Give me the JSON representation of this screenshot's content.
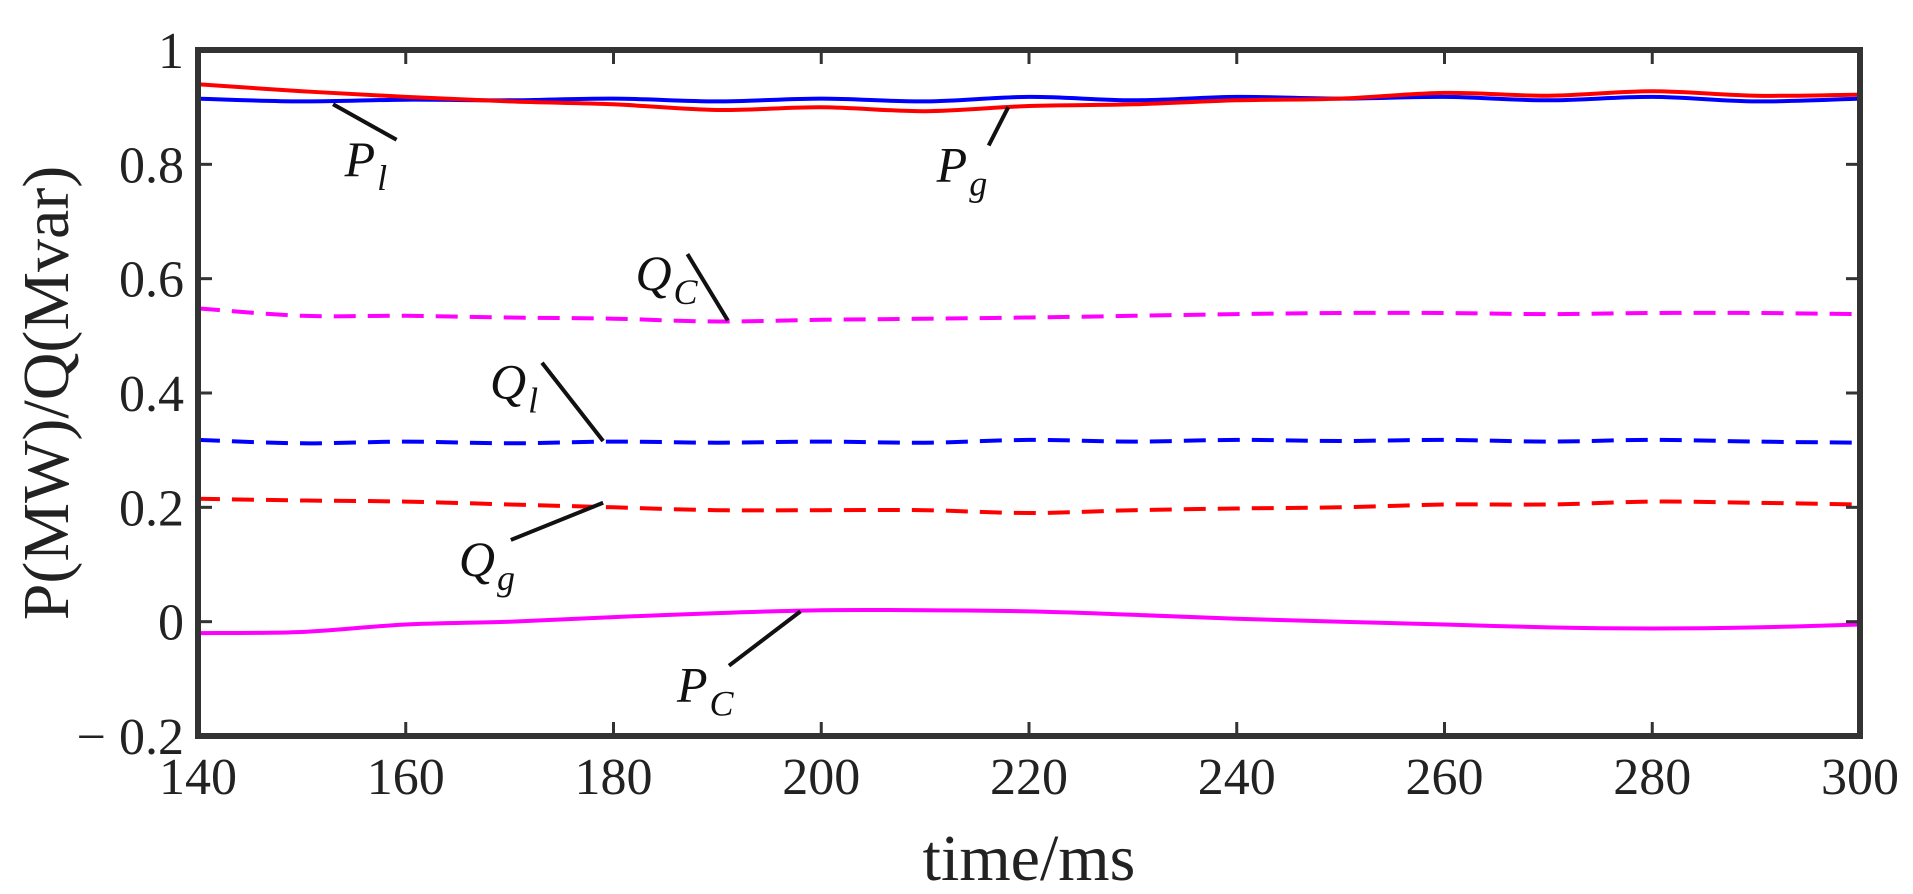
{
  "chart_data": {
    "type": "line",
    "xlabel": "time/ms",
    "ylabel": "P(MW)/Q(Mvar)",
    "xlim": [
      140,
      300
    ],
    "ylim": [
      -0.2,
      1
    ],
    "xticks": [
      140,
      160,
      180,
      200,
      220,
      240,
      260,
      280,
      300
    ],
    "xtick_labels": [
      "140",
      "160",
      "180",
      "200",
      "220",
      "240",
      "260",
      "280",
      "300"
    ],
    "yticks": [
      -0.2,
      0,
      0.2,
      0.4,
      0.6,
      0.8,
      1
    ],
    "ytick_labels": [
      "− 0.2",
      "0",
      "0.2",
      "0.4",
      "0.6",
      "0.8",
      "1"
    ],
    "grid": false,
    "series": [
      {
        "name": "P_l",
        "color": "#0000ff",
        "dash": "solid",
        "x": [
          140,
          150,
          160,
          170,
          180,
          190,
          200,
          210,
          220,
          230,
          240,
          250,
          260,
          270,
          280,
          290,
          300
        ],
        "y": [
          0.915,
          0.91,
          0.913,
          0.912,
          0.915,
          0.91,
          0.915,
          0.91,
          0.918,
          0.912,
          0.918,
          0.915,
          0.918,
          0.912,
          0.918,
          0.91,
          0.915
        ]
      },
      {
        "name": "P_g",
        "color": "#ff0000",
        "dash": "solid",
        "x": [
          140,
          150,
          160,
          170,
          180,
          190,
          200,
          210,
          220,
          230,
          240,
          250,
          260,
          270,
          280,
          290,
          300
        ],
        "y": [
          0.94,
          0.928,
          0.918,
          0.91,
          0.905,
          0.895,
          0.9,
          0.893,
          0.902,
          0.905,
          0.912,
          0.915,
          0.925,
          0.92,
          0.928,
          0.92,
          0.922
        ]
      },
      {
        "name": "Q_C",
        "color": "#ff00ff",
        "dash": "dashed",
        "x": [
          140,
          150,
          160,
          170,
          180,
          190,
          200,
          210,
          220,
          230,
          240,
          250,
          260,
          270,
          280,
          290,
          300
        ],
        "y": [
          0.548,
          0.535,
          0.535,
          0.532,
          0.53,
          0.525,
          0.528,
          0.53,
          0.532,
          0.535,
          0.538,
          0.54,
          0.54,
          0.538,
          0.54,
          0.54,
          0.538
        ]
      },
      {
        "name": "Q_l",
        "color": "#0000ff",
        "dash": "dashed",
        "x": [
          140,
          150,
          160,
          170,
          180,
          190,
          200,
          210,
          220,
          230,
          240,
          250,
          260,
          270,
          280,
          290,
          300
        ],
        "y": [
          0.318,
          0.312,
          0.315,
          0.312,
          0.315,
          0.313,
          0.315,
          0.313,
          0.318,
          0.315,
          0.318,
          0.316,
          0.318,
          0.315,
          0.318,
          0.315,
          0.313
        ]
      },
      {
        "name": "Q_g",
        "color": "#ff0000",
        "dash": "dashed",
        "x": [
          140,
          150,
          160,
          170,
          180,
          190,
          200,
          210,
          220,
          230,
          240,
          250,
          260,
          270,
          280,
          290,
          300
        ],
        "y": [
          0.215,
          0.212,
          0.21,
          0.205,
          0.2,
          0.195,
          0.195,
          0.195,
          0.19,
          0.195,
          0.198,
          0.2,
          0.205,
          0.205,
          0.21,
          0.208,
          0.205
        ]
      },
      {
        "name": "P_C",
        "color": "#ff00ff",
        "dash": "solid",
        "x": [
          140,
          150,
          160,
          170,
          180,
          190,
          200,
          210,
          220,
          230,
          240,
          250,
          260,
          270,
          280,
          290,
          300
        ],
        "y": [
          -0.02,
          -0.018,
          -0.005,
          0.0,
          0.008,
          0.015,
          0.02,
          0.02,
          0.018,
          0.012,
          0.005,
          0.0,
          -0.005,
          -0.01,
          -0.012,
          -0.01,
          -0.005
        ]
      }
    ],
    "annotations": [
      {
        "id": "P_l",
        "main": "P",
        "sub": "l",
        "x": 157,
        "y": 0.78,
        "leader_to": [
          153,
          0.905
        ]
      },
      {
        "id": "P_g",
        "main": "P",
        "sub": "g",
        "x": 214,
        "y": 0.77,
        "leader_to": [
          218,
          0.9
        ]
      },
      {
        "id": "Q_C",
        "main": "Q",
        "sub": "C",
        "x": 185,
        "y": 0.58,
        "leader_to": [
          191,
          0.527
        ]
      },
      {
        "id": "Q_l",
        "main": "Q",
        "sub": "l",
        "x": 171,
        "y": 0.39,
        "leader_to": [
          179,
          0.316
        ]
      },
      {
        "id": "Q_g",
        "main": "Q",
        "sub": "g",
        "x": 168,
        "y": 0.08,
        "leader_to": [
          179,
          0.208
        ]
      },
      {
        "id": "P_C",
        "main": "P",
        "sub": "C",
        "x": 189,
        "y": -0.14,
        "leader_to": [
          198,
          0.018
        ]
      }
    ]
  }
}
